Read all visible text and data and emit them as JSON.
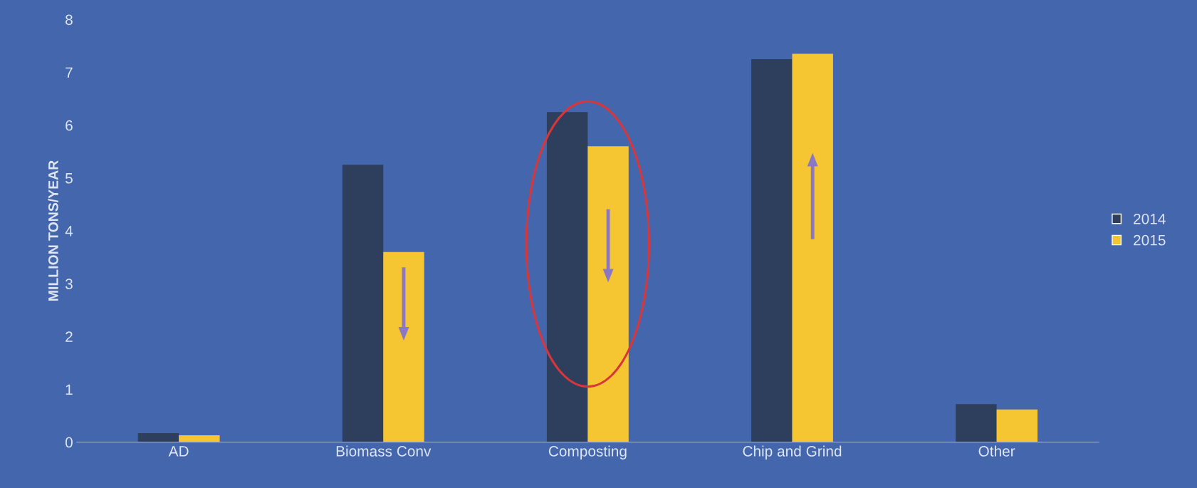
{
  "chart_data": {
    "type": "bar",
    "ylabel": "MILLION TONS/YEAR",
    "categories": [
      "AD",
      "Biomass Conv",
      "Composting",
      "Chip and Grind",
      "Other"
    ],
    "series": [
      {
        "name": "2014",
        "color": "#2e3f5e",
        "values": [
          0.17,
          5.25,
          6.25,
          7.25,
          0.72
        ]
      },
      {
        "name": "2015",
        "color": "#f5c532",
        "values": [
          0.13,
          3.6,
          5.6,
          7.35,
          0.62
        ]
      }
    ],
    "ylim": [
      0,
      8
    ],
    "yticks": [
      0,
      1,
      2,
      3,
      4,
      5,
      6,
      7,
      8
    ],
    "grid": false,
    "legend": "right"
  }
}
